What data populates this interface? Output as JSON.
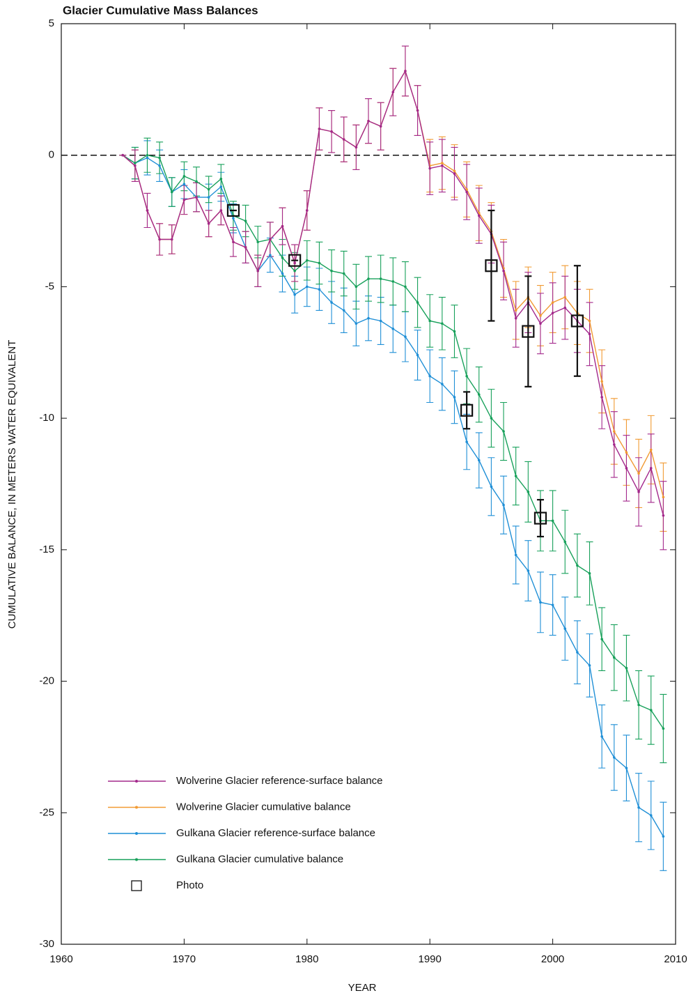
{
  "chart_data": {
    "type": "line",
    "title": "Glacier Cumulative Mass Balances",
    "x_label": "YEAR",
    "y_label": "CUMULATIVE BALANCE, IN METERS WATER EQUIVALENT",
    "x": [
      1965,
      1966,
      1967,
      1968,
      1969,
      1970,
      1971,
      1972,
      1973,
      1974,
      1975,
      1976,
      1977,
      1978,
      1979,
      1980,
      1981,
      1982,
      1983,
      1984,
      1985,
      1986,
      1987,
      1988,
      1989,
      1990,
      1991,
      1992,
      1993,
      1994,
      1995,
      1996,
      1997,
      1998,
      1999,
      2000,
      2001,
      2002,
      2003,
      2004,
      2005,
      2006,
      2007,
      2008,
      2009
    ],
    "series": [
      {
        "name": "Wolverine Glacier reference-surface balance",
        "color": "#a3288c",
        "values": [
          0,
          -0.4,
          -2.1,
          -3.2,
          -3.2,
          -1.7,
          -1.6,
          -2.6,
          -2.1,
          -3.3,
          -3.5,
          -4.4,
          -3.2,
          -2.7,
          -4.1,
          -2.1,
          1.0,
          0.9,
          0.6,
          0.3,
          1.3,
          1.1,
          2.4,
          3.2,
          1.7,
          -0.5,
          -0.4,
          -0.7,
          -1.4,
          -2.3,
          -3.0,
          -4.4,
          -6.2,
          -5.6,
          -6.4,
          -6.0,
          -5.8,
          -6.3,
          -6.8,
          -9.2,
          -11.0,
          -11.9,
          -12.8,
          -11.9,
          -13.7
        ],
        "errors": [
          0,
          0.6,
          0.65,
          0.6,
          0.55,
          0.55,
          0.55,
          0.5,
          0.55,
          0.55,
          0.6,
          0.6,
          0.65,
          0.7,
          0.7,
          0.75,
          0.8,
          0.8,
          0.85,
          0.85,
          0.85,
          0.9,
          0.9,
          0.95,
          0.95,
          1.0,
          1.0,
          1.0,
          1.05,
          1.05,
          1.1,
          1.1,
          1.1,
          1.15,
          1.15,
          1.15,
          1.2,
          1.2,
          1.2,
          1.2,
          1.25,
          1.25,
          1.3,
          1.3,
          1.3
        ]
      },
      {
        "name": "Wolverine Glacier cumulative balance",
        "color": "#f19a32",
        "values": [
          0,
          -0.4,
          -2.1,
          -3.2,
          -3.2,
          -1.7,
          -1.6,
          -2.6,
          -2.1,
          -3.3,
          -3.5,
          -4.4,
          -3.2,
          -2.7,
          -4.1,
          -2.1,
          1.0,
          0.9,
          0.6,
          0.3,
          1.3,
          1.1,
          2.4,
          3.2,
          1.7,
          -0.4,
          -0.3,
          -0.6,
          -1.3,
          -2.2,
          -2.9,
          -4.3,
          -5.9,
          -5.4,
          -6.1,
          -5.6,
          -5.4,
          -6.0,
          -6.3,
          -8.6,
          -10.5,
          -11.3,
          -12.1,
          -11.2,
          -13.0
        ],
        "errors": [
          0,
          0.6,
          0.65,
          0.6,
          0.55,
          0.55,
          0.55,
          0.5,
          0.55,
          0.55,
          0.6,
          0.6,
          0.65,
          0.7,
          0.7,
          0.75,
          0.8,
          0.8,
          0.85,
          0.85,
          0.85,
          0.9,
          0.9,
          0.95,
          0.95,
          1.0,
          1.0,
          1.0,
          1.05,
          1.05,
          1.1,
          1.1,
          1.1,
          1.15,
          1.15,
          1.15,
          1.2,
          1.2,
          1.2,
          1.2,
          1.25,
          1.25,
          1.3,
          1.3,
          1.3
        ]
      },
      {
        "name": "Gulkana Glacier reference-surface balance",
        "color": "#1f8fd6",
        "values": [
          0,
          -0.3,
          -0.1,
          -0.4,
          -1.4,
          -1.1,
          -1.6,
          -1.6,
          -1.2,
          -2.4,
          -3.5,
          -4.4,
          -3.8,
          -4.5,
          -5.3,
          -5.0,
          -5.1,
          -5.6,
          -5.9,
          -6.4,
          -6.2,
          -6.3,
          -6.6,
          -6.9,
          -7.6,
          -8.4,
          -8.7,
          -9.2,
          -10.9,
          -11.6,
          -12.6,
          -13.3,
          -15.2,
          -15.8,
          -17.0,
          -17.1,
          -18.0,
          -18.9,
          -19.4,
          -22.1,
          -22.9,
          -23.3,
          -24.8,
          -25.1,
          -25.9
        ],
        "errors": [
          0,
          0.6,
          0.65,
          0.6,
          0.55,
          0.55,
          0.55,
          0.5,
          0.55,
          0.55,
          0.6,
          0.6,
          0.65,
          0.7,
          0.7,
          0.75,
          0.8,
          0.8,
          0.85,
          0.85,
          0.85,
          0.9,
          0.9,
          0.95,
          0.95,
          1.0,
          1.0,
          1.0,
          1.05,
          1.05,
          1.1,
          1.1,
          1.1,
          1.15,
          1.15,
          1.15,
          1.2,
          1.2,
          1.2,
          1.2,
          1.25,
          1.25,
          1.3,
          1.3,
          1.3
        ]
      },
      {
        "name": "Gulkana Glacier cumulative balance",
        "color": "#17a05a",
        "values": [
          0,
          -0.3,
          0,
          -0.1,
          -1.4,
          -0.8,
          -1.0,
          -1.3,
          -0.9,
          -2.3,
          -2.5,
          -3.3,
          -3.2,
          -3.9,
          -4.4,
          -4.0,
          -4.1,
          -4.4,
          -4.5,
          -5.0,
          -4.7,
          -4.7,
          -4.8,
          -5.0,
          -5.6,
          -6.3,
          -6.4,
          -6.7,
          -8.4,
          -9.1,
          -10.0,
          -10.5,
          -12.2,
          -12.8,
          -13.9,
          -13.9,
          -14.7,
          -15.6,
          -15.9,
          -18.4,
          -19.1,
          -19.5,
          -20.9,
          -21.1,
          -21.8
        ],
        "errors": [
          0,
          0.6,
          0.65,
          0.6,
          0.55,
          0.55,
          0.55,
          0.5,
          0.55,
          0.55,
          0.6,
          0.6,
          0.65,
          0.7,
          0.7,
          0.75,
          0.8,
          0.8,
          0.85,
          0.85,
          0.85,
          0.9,
          0.9,
          0.95,
          0.95,
          1.0,
          1.0,
          1.0,
          1.05,
          1.05,
          1.1,
          1.1,
          1.1,
          1.15,
          1.15,
          1.15,
          1.2,
          1.2,
          1.2,
          1.2,
          1.25,
          1.25,
          1.3,
          1.3,
          1.3
        ]
      }
    ],
    "photos": {
      "name": "Photo",
      "color": "#111111",
      "x": [
        1974,
        1979,
        1993,
        1995,
        1998,
        1999,
        2002
      ],
      "values": [
        -2.1,
        -4.0,
        -9.7,
        -4.2,
        -6.7,
        -13.8,
        -6.3
      ],
      "errors": [
        0,
        0,
        0.7,
        2.1,
        2.1,
        0.7,
        2.1
      ]
    },
    "reference_line": 0,
    "xlim": [
      1960,
      2010
    ],
    "xticks": [
      1960,
      1970,
      1980,
      1990,
      2000,
      2010
    ],
    "ylim": [
      -30,
      5
    ],
    "yticks": [
      5,
      0,
      -5,
      -10,
      -15,
      -20,
      -25,
      -30
    ],
    "legend": "lower left"
  }
}
